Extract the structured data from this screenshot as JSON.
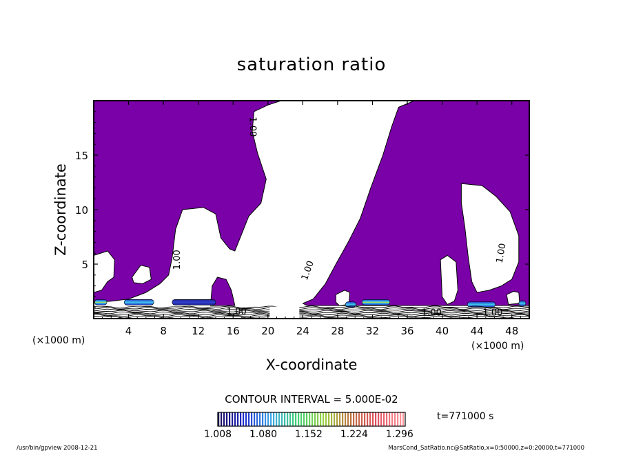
{
  "chart_data": {
    "type": "contour",
    "title": "saturation ratio",
    "xlabel": "X-coordinate",
    "ylabel": "Z-coordinate",
    "x_unit": "(×1000 m)",
    "z_unit": "(×1000 m)",
    "xlim": [
      0,
      50
    ],
    "ylim": [
      0,
      20
    ],
    "x_ticks": [
      4,
      8,
      12,
      16,
      20,
      24,
      28,
      32,
      36,
      40,
      44,
      48
    ],
    "y_ticks": [
      5,
      10,
      15
    ],
    "fill_color": "#7a00a8",
    "contour_label": "1.00",
    "contour_interval": "CONTOUR INTERVAL = 5.000E-02",
    "time_label": "t=771000 s",
    "colorbar_ticks": [
      "1.008",
      "1.080",
      "1.152",
      "1.224",
      "1.296"
    ],
    "colorbar_colors": [
      "#1a0a5a",
      "#1f2fd0",
      "#3fa8e8",
      "#3fd070",
      "#9ad040",
      "#c07040",
      "#e05060",
      "#ff9aa0"
    ],
    "filled_regions": [
      {
        "name": "left-upper",
        "points": [
          [
            0,
            20
          ],
          [
            21.5,
            20
          ],
          [
            20,
            19.6
          ],
          [
            18.4,
            19
          ],
          [
            18.2,
            17.2
          ],
          [
            18.8,
            15.2
          ],
          [
            19.8,
            12.8
          ],
          [
            19.2,
            10.6
          ],
          [
            17.8,
            9.4
          ],
          [
            17,
            7.8
          ],
          [
            16.2,
            6.2
          ],
          [
            15.6,
            6.4
          ],
          [
            14.6,
            7.4
          ],
          [
            14,
            9.6
          ],
          [
            12.6,
            10.2
          ],
          [
            10.2,
            10
          ],
          [
            9.4,
            8.2
          ],
          [
            9,
            5.6
          ],
          [
            8.6,
            4
          ],
          [
            7.6,
            3.2
          ],
          [
            6,
            2.4
          ],
          [
            4,
            1.8
          ],
          [
            2,
            1.6
          ],
          [
            0,
            1.5
          ]
        ]
      },
      {
        "name": "right-upper",
        "points": [
          [
            50,
            20
          ],
          [
            36.8,
            20
          ],
          [
            35,
            19.4
          ],
          [
            34.2,
            17.6
          ],
          [
            33.2,
            15
          ],
          [
            31.8,
            12
          ],
          [
            30.6,
            9.2
          ],
          [
            29.2,
            7
          ],
          [
            27.8,
            5
          ],
          [
            26.6,
            3.2
          ],
          [
            25.2,
            1.8
          ],
          [
            24,
            1.4
          ],
          [
            24.5,
            1.2
          ],
          [
            50,
            1.2
          ]
        ]
      },
      {
        "name": "mid-blob",
        "points": [
          [
            13.4,
            1.2
          ],
          [
            13.6,
            3
          ],
          [
            14.2,
            3.8
          ],
          [
            15.2,
            3.6
          ],
          [
            15.8,
            2.6
          ],
          [
            16.2,
            1.2
          ]
        ]
      }
    ],
    "white_holes": [
      {
        "name": "hole-left-edge",
        "points": [
          [
            0,
            5.8
          ],
          [
            1.6,
            6.2
          ],
          [
            2.4,
            5.4
          ],
          [
            2.3,
            3.8
          ],
          [
            1.6,
            3.4
          ],
          [
            0.9,
            2.6
          ],
          [
            0,
            2.4
          ]
        ]
      },
      {
        "name": "hole-small",
        "points": [
          [
            4.4,
            3.8
          ],
          [
            5.4,
            4.9
          ],
          [
            6.4,
            4.7
          ],
          [
            6.6,
            3.6
          ],
          [
            5.6,
            3.2
          ],
          [
            4.6,
            3.3
          ]
        ]
      },
      {
        "name": "hole-right",
        "points": [
          [
            42.2,
            12.4
          ],
          [
            44.6,
            12.2
          ],
          [
            46.2,
            11.2
          ],
          [
            47.8,
            9.8
          ],
          [
            48.8,
            7.6
          ],
          [
            48.8,
            5.2
          ],
          [
            48,
            3.6
          ],
          [
            46.8,
            3
          ],
          [
            45.4,
            2.6
          ],
          [
            44,
            2.4
          ],
          [
            43.4,
            3.4
          ],
          [
            43,
            5.6
          ],
          [
            42.6,
            8.4
          ],
          [
            42.2,
            10.6
          ]
        ]
      },
      {
        "name": "hole-mid-right",
        "points": [
          [
            39.8,
            5.4
          ],
          [
            40.6,
            5.8
          ],
          [
            41.6,
            5.2
          ],
          [
            41.8,
            2.6
          ],
          [
            41.4,
            1.6
          ],
          [
            40.6,
            1.3
          ],
          [
            40,
            2
          ]
        ]
      },
      {
        "name": "hole-lower",
        "points": [
          [
            27.8,
            2.2
          ],
          [
            28.8,
            2.6
          ],
          [
            29.4,
            2.4
          ],
          [
            29.3,
            1.3
          ],
          [
            28.2,
            1.2
          ],
          [
            27.8,
            1.5
          ]
        ]
      },
      {
        "name": "hole-far-right",
        "points": [
          [
            47.4,
            2.2
          ],
          [
            48.2,
            2.5
          ],
          [
            48.8,
            2.4
          ],
          [
            48.9,
            1.4
          ],
          [
            47.6,
            1.3
          ]
        ]
      }
    ],
    "contour_labels": [
      {
        "text": "1.00",
        "x": 18.2,
        "z": 17.6,
        "rotate": 90
      },
      {
        "text": "1.00",
        "x": 9.6,
        "z": 5.4,
        "rotate": -90
      },
      {
        "text": "1.00",
        "x": 24.6,
        "z": 4.4,
        "rotate": -70
      },
      {
        "text": "1.00",
        "x": 46.8,
        "z": 6.0,
        "rotate": -80
      },
      {
        "text": "1.00",
        "x": 16.4,
        "z": 0.6,
        "rotate": 0
      },
      {
        "text": "1.00",
        "x": 38.8,
        "z": 0.5,
        "rotate": 0
      },
      {
        "text": "1.00",
        "x": 45.8,
        "z": 0.5,
        "rotate": 0
      }
    ],
    "supersaturation_spots": [
      {
        "x": 0.8,
        "z": 1.5,
        "w": 1.4,
        "level": "high"
      },
      {
        "x": 5.2,
        "z": 1.5,
        "w": 3.4,
        "level": "mid"
      },
      {
        "x": 11.5,
        "z": 1.5,
        "w": 5.0,
        "level": "low"
      },
      {
        "x": 29.5,
        "z": 1.3,
        "w": 1.2,
        "level": "mid"
      },
      {
        "x": 32.4,
        "z": 1.5,
        "w": 3.2,
        "level": "high"
      },
      {
        "x": 44.5,
        "z": 1.3,
        "w": 3.2,
        "level": "mid"
      },
      {
        "x": 49.2,
        "z": 1.4,
        "w": 0.8,
        "level": "mid"
      }
    ]
  },
  "footer": {
    "left": "/usr/bin/gpview  2008-12-21",
    "right": "MarsCond_SatRatio.nc@SatRatio,x=0:50000,z=0:20000,t=771000"
  }
}
